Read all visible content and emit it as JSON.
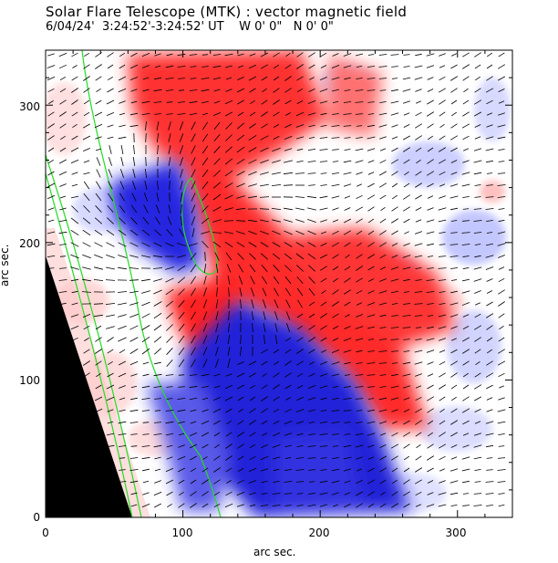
{
  "title": "Solar Flare Telescope (MTK) : vector magnetic field",
  "subtitle": "6/04/24'  3:24:52'-3:24:52' UT    W 0' 0\"   N 0' 0\"",
  "axes": {
    "xlabel": "arc sec.",
    "ylabel": "arc sec.",
    "xticks": [
      "0",
      "100",
      "200",
      "300"
    ],
    "yticks": [
      "0",
      "100",
      "200",
      "300"
    ],
    "xrange": [
      0,
      340
    ],
    "yrange": [
      0,
      340
    ]
  },
  "colors": {
    "positive": "#ff2020",
    "negative": "#2020e0",
    "limb": "#000000",
    "contour": "#22dd22",
    "vectors": "#000000"
  }
}
